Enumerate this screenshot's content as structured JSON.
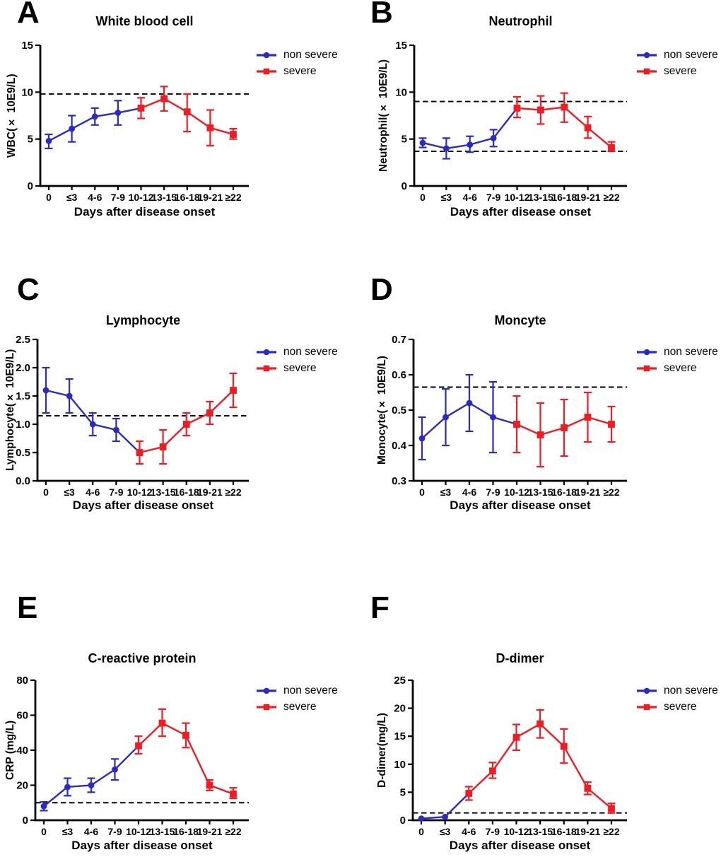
{
  "figure": {
    "background": "#ffffff",
    "x_axis_title": "Days after disease onset",
    "legend": {
      "non_severe": "non severe",
      "severe": "severe"
    },
    "colors": {
      "non_severe": "#2b2bc4",
      "severe": "#ee1d24",
      "reference_line": "#000000"
    }
  },
  "chart_data": [
    {
      "panel": "A",
      "type": "line",
      "title": "White blood cell",
      "ylabel": "WBC(× 10E9/L)",
      "xlabel": "Days after disease onset",
      "ylim": [
        0,
        15
      ],
      "ytick_values": [
        0,
        5,
        10,
        15
      ],
      "ytick_labels": [
        "0",
        "5",
        "10",
        "15"
      ],
      "reference_lines": [
        9.8
      ],
      "grid": false,
      "legend_position": "right",
      "categories": [
        "0",
        "≤3",
        "4-6",
        "7-9",
        "10-12",
        "13-15",
        "16-18",
        "19-21",
        "≥22"
      ],
      "series": [
        {
          "name": "non severe",
          "color": "#2b2bc4",
          "marker": "circle",
          "values": [
            4.8,
            6.1,
            7.4,
            7.8,
            null,
            null,
            null,
            null,
            null
          ],
          "err_low": [
            4.0,
            4.7,
            6.5,
            6.5,
            null,
            null,
            null,
            null,
            null
          ],
          "err_high": [
            5.5,
            7.5,
            8.3,
            9.1,
            null,
            null,
            null,
            null,
            null
          ]
        },
        {
          "name": "severe",
          "color": "#ee1d24",
          "marker": "square",
          "values": [
            null,
            null,
            null,
            null,
            8.3,
            9.3,
            7.9,
            6.2,
            5.5
          ],
          "err_low": [
            null,
            null,
            null,
            null,
            7.2,
            8.0,
            5.8,
            4.3,
            5.0
          ],
          "err_high": [
            null,
            null,
            null,
            null,
            9.4,
            10.6,
            9.8,
            8.1,
            6.1
          ]
        }
      ]
    },
    {
      "panel": "B",
      "type": "line",
      "title": "Neutrophil",
      "ylabel": "Neutrophil(× 10E9/L)",
      "xlabel": "Days after disease onset",
      "ylim": [
        0,
        15
      ],
      "ytick_values": [
        0,
        5,
        10,
        15
      ],
      "ytick_labels": [
        "0",
        "5",
        "10",
        "15"
      ],
      "reference_lines": [
        9.0,
        3.7
      ],
      "grid": false,
      "legend_position": "right",
      "categories": [
        "0",
        "≤3",
        "4-6",
        "7-9",
        "10-12",
        "13-15",
        "16-18",
        "19-21",
        "≥22"
      ],
      "series": [
        {
          "name": "non severe",
          "color": "#2b2bc4",
          "marker": "circle",
          "values": [
            4.6,
            4.0,
            4.4,
            5.1,
            null,
            null,
            null,
            null,
            null
          ],
          "err_low": [
            4.1,
            2.9,
            3.6,
            4.2,
            null,
            null,
            null,
            null,
            null
          ],
          "err_high": [
            5.1,
            5.1,
            5.3,
            6.0,
            null,
            null,
            null,
            null,
            null
          ]
        },
        {
          "name": "severe",
          "color": "#ee1d24",
          "marker": "square",
          "values": [
            null,
            null,
            null,
            null,
            8.3,
            8.1,
            8.4,
            6.2,
            4.1
          ],
          "err_low": [
            null,
            null,
            null,
            null,
            7.3,
            6.6,
            6.8,
            5.1,
            3.7
          ],
          "err_high": [
            null,
            null,
            null,
            null,
            9.5,
            9.6,
            9.9,
            7.4,
            4.7
          ]
        }
      ]
    },
    {
      "panel": "C",
      "type": "line",
      "title": "Lymphocyte",
      "ylabel": "Lymphocyte(× 10E9/L)",
      "xlabel": "Days after disease onset",
      "ylim": [
        0,
        2.5
      ],
      "ytick_values": [
        0,
        0.5,
        1.0,
        1.5,
        2.0,
        2.5
      ],
      "ytick_labels": [
        "0.0",
        "0.5",
        "1.0",
        "1.5",
        "2.0",
        "2.5"
      ],
      "reference_lines": [
        1.15
      ],
      "grid": false,
      "legend_position": "right",
      "categories": [
        "0",
        "≤3",
        "4-6",
        "7-9",
        "10-12",
        "13-15",
        "16-18",
        "19-21",
        "≥22"
      ],
      "series": [
        {
          "name": "non severe",
          "color": "#2b2bc4",
          "marker": "circle",
          "values": [
            1.6,
            1.5,
            1.0,
            0.9,
            null,
            null,
            null,
            null,
            null
          ],
          "err_low": [
            1.2,
            1.2,
            0.8,
            0.7,
            null,
            null,
            null,
            null,
            null
          ],
          "err_high": [
            2.0,
            1.8,
            1.2,
            1.1,
            null,
            null,
            null,
            null,
            null
          ]
        },
        {
          "name": "severe",
          "color": "#ee1d24",
          "marker": "square",
          "values": [
            null,
            null,
            null,
            null,
            0.5,
            0.6,
            1.0,
            1.2,
            1.6
          ],
          "err_low": [
            null,
            null,
            null,
            null,
            0.3,
            0.3,
            0.8,
            1.0,
            1.3
          ],
          "err_high": [
            null,
            null,
            null,
            null,
            0.7,
            0.9,
            1.2,
            1.4,
            1.9
          ]
        }
      ]
    },
    {
      "panel": "D",
      "type": "line",
      "title": "Moncyte",
      "ylabel": "Monocyte(× 10E9/L)",
      "xlabel": "Days after disease onset",
      "ylim": [
        0.3,
        0.7
      ],
      "ytick_values": [
        0.3,
        0.4,
        0.5,
        0.6,
        0.7
      ],
      "ytick_labels": [
        "0.3",
        "0.4",
        "0.5",
        "0.6",
        "0.7"
      ],
      "reference_lines": [
        0.565
      ],
      "grid": false,
      "legend_position": "right",
      "categories": [
        "0",
        "≤3",
        "4-6",
        "7-9",
        "10-12",
        "13-15",
        "16-18",
        "19-21",
        "≥22"
      ],
      "series": [
        {
          "name": "non severe",
          "color": "#2b2bc4",
          "marker": "circle",
          "values": [
            0.42,
            0.48,
            0.52,
            0.48,
            null,
            null,
            null,
            null,
            null
          ],
          "err_low": [
            0.36,
            0.4,
            0.44,
            0.38,
            null,
            null,
            null,
            null,
            null
          ],
          "err_high": [
            0.48,
            0.56,
            0.6,
            0.58,
            null,
            null,
            null,
            null,
            null
          ]
        },
        {
          "name": "severe",
          "color": "#ee1d24",
          "marker": "square",
          "values": [
            null,
            null,
            null,
            null,
            0.46,
            0.43,
            0.45,
            0.48,
            0.46
          ],
          "err_low": [
            null,
            null,
            null,
            null,
            0.38,
            0.34,
            0.37,
            0.41,
            0.41
          ],
          "err_high": [
            null,
            null,
            null,
            null,
            0.54,
            0.52,
            0.53,
            0.55,
            0.51
          ]
        }
      ]
    },
    {
      "panel": "E",
      "type": "line",
      "title": "C-reactive protein",
      "ylabel": "CRP (mg/L)",
      "xlabel": "Days after disease onset",
      "ylim": [
        0,
        80
      ],
      "ytick_values": [
        0,
        20,
        40,
        60,
        80
      ],
      "ytick_labels": [
        "0",
        "20",
        "40",
        "60",
        "80"
      ],
      "reference_lines": [
        10
      ],
      "grid": false,
      "legend_position": "right",
      "categories": [
        "0",
        "≤3",
        "4-6",
        "7-9",
        "10-12",
        "13-15",
        "16-18",
        "19-21",
        "≥22"
      ],
      "series": [
        {
          "name": "non severe",
          "color": "#2b2bc4",
          "marker": "circle",
          "values": [
            8,
            19,
            20,
            29,
            null,
            null,
            null,
            null,
            null
          ],
          "err_low": [
            5.5,
            14,
            16,
            23,
            null,
            null,
            null,
            null,
            null
          ],
          "err_high": [
            10.5,
            24,
            24,
            35,
            null,
            null,
            null,
            null,
            null
          ]
        },
        {
          "name": "severe",
          "color": "#ee1d24",
          "marker": "square",
          "values": [
            null,
            null,
            null,
            null,
            42.5,
            55.5,
            48.5,
            20,
            15
          ],
          "err_low": [
            null,
            null,
            null,
            null,
            38,
            48,
            41.5,
            17,
            12.5
          ],
          "err_high": [
            null,
            null,
            null,
            null,
            48,
            63.5,
            55.5,
            23,
            18.5
          ]
        }
      ]
    },
    {
      "panel": "F",
      "type": "line",
      "title": "D-dimer",
      "ylabel": "D-dimer(mg/L)",
      "xlabel": "Days after disease onset",
      "ylim": [
        0,
        25
      ],
      "ytick_values": [
        0,
        5,
        10,
        15,
        20,
        25
      ],
      "ytick_labels": [
        "0",
        "5",
        "10",
        "15",
        "20",
        "25"
      ],
      "reference_lines": [
        1.3
      ],
      "grid": false,
      "legend_position": "right",
      "categories": [
        "0",
        "≤3",
        "4-6",
        "7-9",
        "10-12",
        "13-15",
        "16-18",
        "19-21",
        "≥22"
      ],
      "series": [
        {
          "name": "non severe",
          "color": "#2b2bc4",
          "marker": "circle",
          "values": [
            0.3,
            0.6,
            null,
            null,
            null,
            null,
            null,
            null,
            null
          ],
          "err_low": [
            0.3,
            0.6,
            null,
            null,
            null,
            null,
            null,
            null,
            null
          ],
          "err_high": [
            0.3,
            0.6,
            null,
            null,
            null,
            null,
            null,
            null,
            null
          ]
        },
        {
          "name": "severe",
          "color": "#ee1d24",
          "marker": "square",
          "values": [
            null,
            null,
            4.8,
            8.8,
            14.8,
            17.2,
            13.2,
            5.7,
            2.1
          ],
          "err_low": [
            null,
            null,
            3.6,
            7.5,
            12.5,
            14.7,
            10.2,
            4.6,
            1.3
          ],
          "err_high": [
            null,
            null,
            6.0,
            10.3,
            17.1,
            19.7,
            16.3,
            6.8,
            3.0
          ]
        }
      ]
    }
  ]
}
